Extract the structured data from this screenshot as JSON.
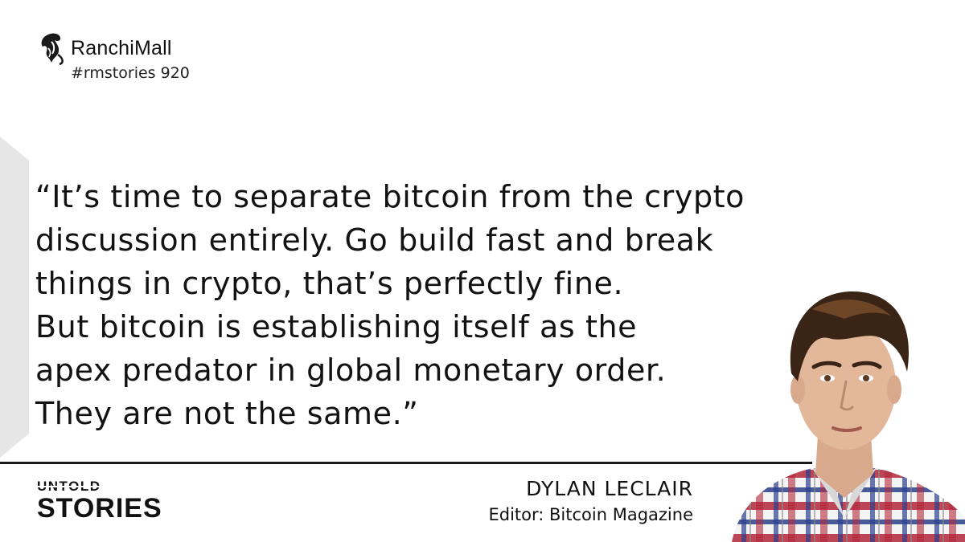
{
  "brand": {
    "name": "RanchiMall",
    "tag": "#rmstories 920",
    "logo_icon": "seahorse-logo-icon"
  },
  "quote": {
    "lines": [
      "“It’s time to separate bitcoin from the crypto",
      "discussion entirely. Go build fast and break",
      "things in crypto, that’s perfectly fine.",
      "But bitcoin is establishing itself as the",
      "apex predator in global monetary order.",
      "They are not the same.”"
    ]
  },
  "series": {
    "line1": "UNTOLD",
    "line2": "STORIES"
  },
  "author": {
    "name": "DYLAN LECLAIR",
    "role": "Editor: Bitcoin Magazine"
  },
  "colors": {
    "text": "#111111",
    "accent_gray": "#e6e6e6",
    "shirt_red": "#b3283a",
    "shirt_blue": "#2c3f8c",
    "hair": "#3a2416",
    "skin": "#e2b79a"
  }
}
